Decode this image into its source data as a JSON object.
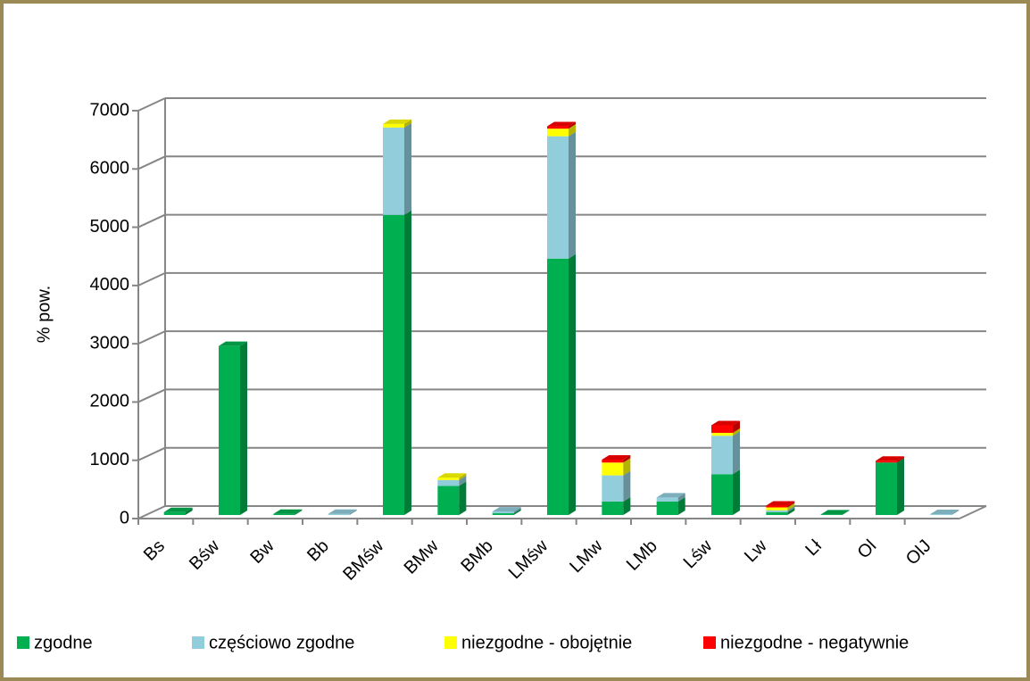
{
  "chart_data": {
    "type": "bar3d_stacked",
    "y_label": "% pow.",
    "categories": [
      "Bs",
      "Bśw",
      "Bw",
      "Bb",
      "BMśw",
      "BMw",
      "BMb",
      "LMśw",
      "LMw",
      "LMb",
      "Lśw",
      "Lw",
      "Lł",
      "Ol",
      "OlJ"
    ],
    "series": [
      {
        "name": "zgodne",
        "color": "#00b050",
        "values": [
          50,
          2900,
          20,
          0,
          5150,
          500,
          30,
          4400,
          230,
          230,
          700,
          50,
          10,
          900,
          0
        ]
      },
      {
        "name": "częściowo zgodne",
        "color": "#92cddc",
        "values": [
          0,
          0,
          0,
          20,
          1500,
          100,
          30,
          2100,
          450,
          70,
          660,
          30,
          0,
          0,
          15
        ]
      },
      {
        "name": "niezgodne - obojętnie",
        "color": "#ffff00",
        "values": [
          0,
          0,
          0,
          0,
          60,
          40,
          0,
          130,
          220,
          0,
          50,
          50,
          0,
          0,
          0
        ]
      },
      {
        "name": "niezgodne - negatywnie",
        "color": "#ff0000",
        "values": [
          0,
          0,
          0,
          0,
          0,
          0,
          0,
          40,
          50,
          0,
          130,
          30,
          0,
          30,
          0
        ]
      }
    ],
    "ylim": [
      0,
      7000
    ],
    "yticks": [
      0,
      1000,
      2000,
      3000,
      4000,
      5000,
      6000,
      7000
    ],
    "grid": true
  }
}
